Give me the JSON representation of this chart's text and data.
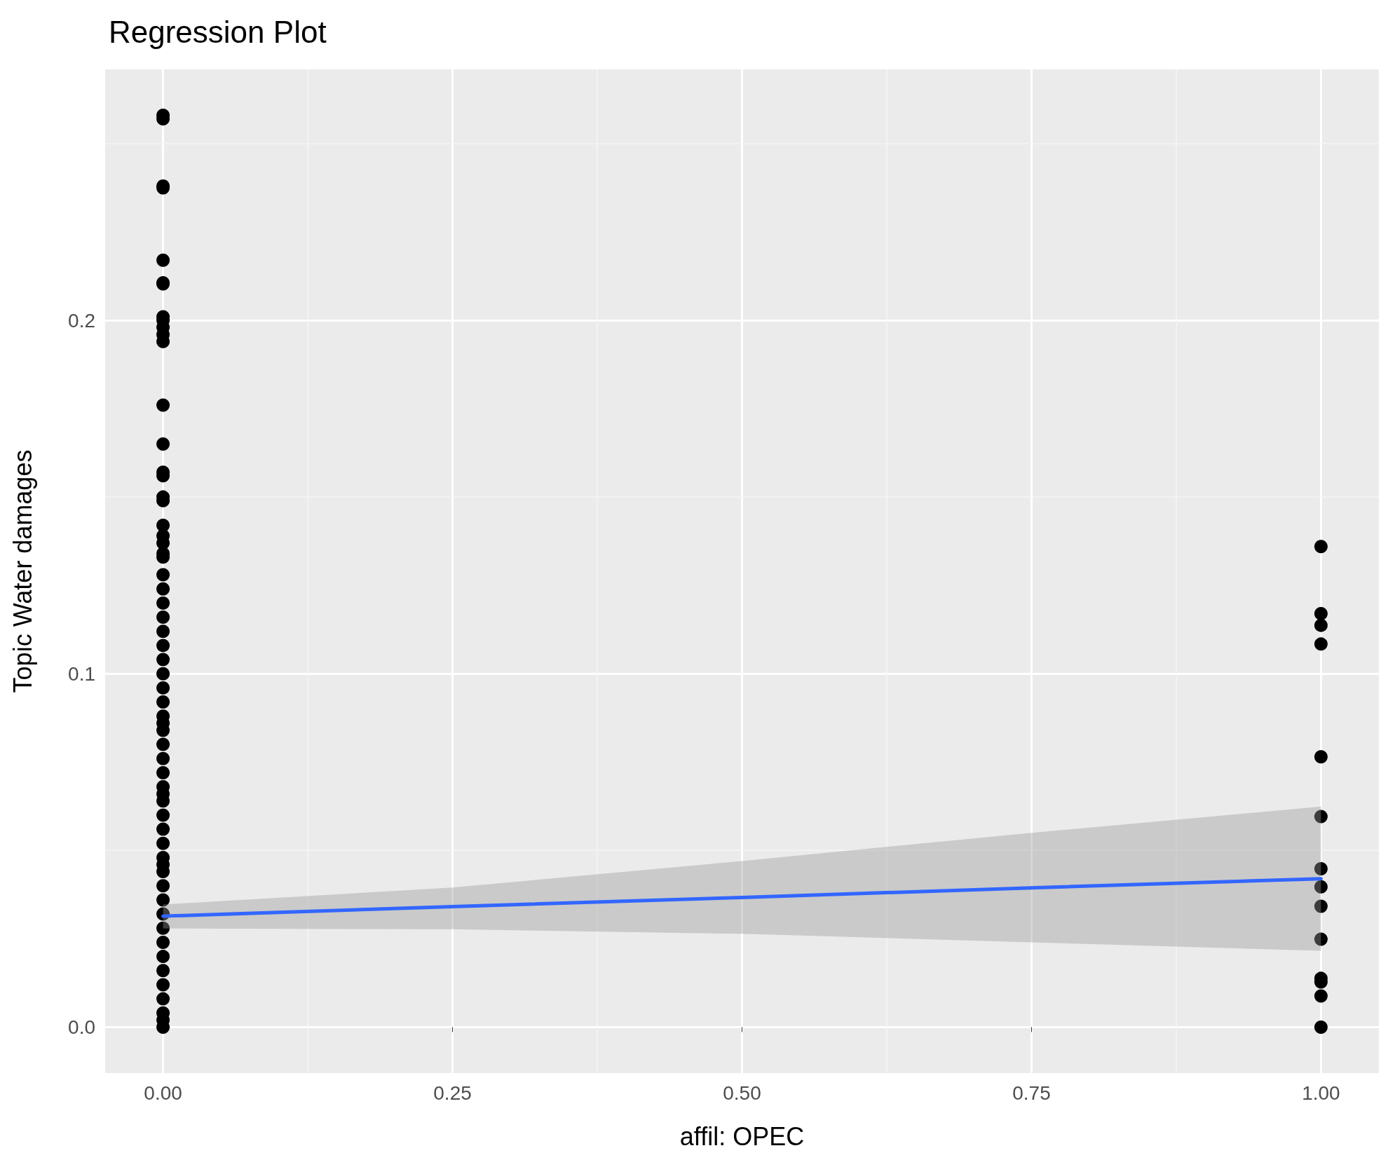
{
  "chart_data": {
    "type": "scatter",
    "title": "Regression Plot",
    "xlabel": "affil: OPEC",
    "ylabel": "Topic Water damages",
    "xlim": [
      -0.05,
      1.05
    ],
    "ylim": [
      -0.013,
      0.271
    ],
    "xticks": [
      {
        "value": 0,
        "label": "0.00"
      },
      {
        "value": 0.25,
        "label": "0.25"
      },
      {
        "value": 0.5,
        "label": "0.50"
      },
      {
        "value": 0.75,
        "label": "0.75"
      },
      {
        "value": 1,
        "label": "1.00"
      }
    ],
    "yticks": [
      {
        "value": 0,
        "label": "0.0"
      },
      {
        "value": 0.1,
        "label": "0.1"
      },
      {
        "value": 0.2,
        "label": "0.2"
      }
    ],
    "grid": true,
    "series": [
      {
        "color": "#000000",
        "marker": "circle",
        "x": [
          0,
          0,
          0,
          0,
          0,
          0,
          0,
          0,
          0,
          0,
          0,
          0,
          0,
          0,
          0,
          0,
          0,
          0,
          0,
          0,
          0,
          0,
          0,
          0,
          0,
          0,
          0,
          0,
          0,
          0,
          0,
          0,
          0,
          0,
          0,
          0,
          0,
          0,
          0,
          0,
          0,
          0,
          0,
          0,
          0,
          0,
          0,
          0,
          0,
          0,
          0,
          0,
          0,
          0,
          0,
          0,
          0,
          0,
          0,
          0,
          1,
          1,
          1,
          1,
          1,
          1,
          1,
          1,
          1,
          1,
          1,
          1,
          1,
          1
        ],
        "values": [
          0.258,
          0.257,
          0.238,
          0.2375,
          0.217,
          0.2106,
          0.2103,
          0.201,
          0.2,
          0.198,
          0.196,
          0.194,
          0.176,
          0.165,
          0.157,
          0.156,
          0.15,
          0.149,
          0.142,
          0.139,
          0.137,
          0.134,
          0.133,
          0.128,
          0.124,
          0.12,
          0.116,
          0.112,
          0.108,
          0.104,
          0.1,
          0.096,
          0.092,
          0.088,
          0.084,
          0.08,
          0.076,
          0.072,
          0.068,
          0.064,
          0.06,
          0.056,
          0.052,
          0.048,
          0.044,
          0.04,
          0.036,
          0.032,
          0.028,
          0.024,
          0.02,
          0.016,
          0.012,
          0.008,
          0.004,
          0.002,
          0,
          0.046,
          0.066,
          0.086,
          0.136,
          0.117,
          0.1137,
          0.1084,
          0.0765,
          0.0596,
          0.0448,
          0.0397,
          0.0342,
          0.0249,
          0.0138,
          0.0128,
          0.0088,
          0
        ]
      },
      {
        "type": "line",
        "marker": "none",
        "color": "#3366ff",
        "x": [
          0,
          0.25,
          0.5,
          0.75,
          1
        ],
        "values": [
          0.0314,
          0.0341,
          0.0367,
          0.0394,
          0.042
        ],
        "lower": [
          0.0279,
          0.0277,
          0.0264,
          0.024,
          0.0216
        ],
        "upper": [
          0.0347,
          0.0395,
          0.047,
          0.055,
          0.0624
        ]
      }
    ]
  }
}
